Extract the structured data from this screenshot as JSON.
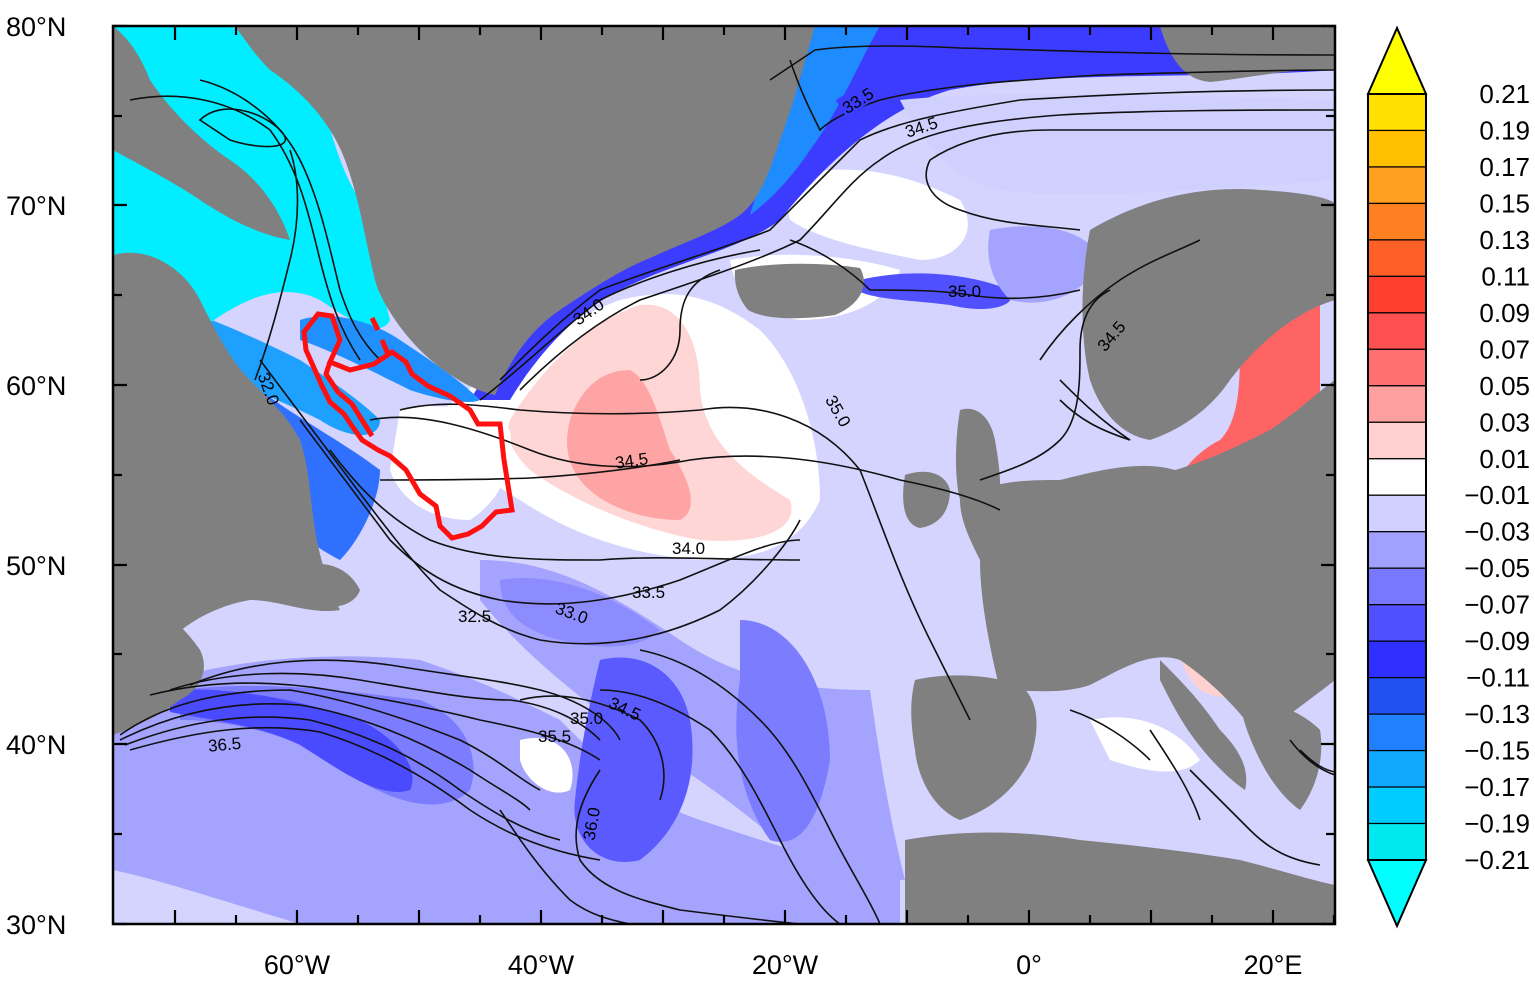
{
  "map": {
    "y_axis_labels": [
      "80°N",
      "70°N",
      "60°N",
      "50°N",
      "40°N",
      "30°N"
    ],
    "x_axis_labels": [
      "60°W",
      "40°W",
      "20°W",
      "0°",
      "20°E"
    ],
    "contour_labels": [
      "33.5",
      "34.5",
      "34.0",
      "35.0",
      "34.5",
      "32.0",
      "35.0",
      "34.5",
      "34.0",
      "33.5",
      "32.5",
      "33.0",
      "35.0",
      "34.5",
      "35.5",
      "36.5",
      "36.0"
    ],
    "colors": {
      "land": "#808080",
      "region_outline": "#ff1010",
      "ocean_neutral": "#ffffff"
    }
  },
  "colorbar": {
    "labels": [
      "0.21",
      "0.19",
      "0.17",
      "0.15",
      "0.13",
      "0.11",
      "0.09",
      "0.07",
      "0.05",
      "0.03",
      "0.01",
      "−0.01",
      "−0.03",
      "−0.05",
      "−0.07",
      "−0.09",
      "−0.11",
      "−0.13",
      "−0.15",
      "−0.17",
      "−0.19",
      "−0.21"
    ],
    "colors": [
      "#ffff00",
      "#ffe000",
      "#ffc000",
      "#ffa020",
      "#ff8020",
      "#ff6028",
      "#ff4030",
      "#ff5050",
      "#ff7070",
      "#ffa0a0",
      "#ffd0d0",
      "#ffffff",
      "#d0d0ff",
      "#a0a0ff",
      "#7878ff",
      "#5050ff",
      "#2f2fff",
      "#2050f0",
      "#2080ff",
      "#10a8ff",
      "#00ccff",
      "#00e8f0",
      "#00ffff"
    ]
  }
}
